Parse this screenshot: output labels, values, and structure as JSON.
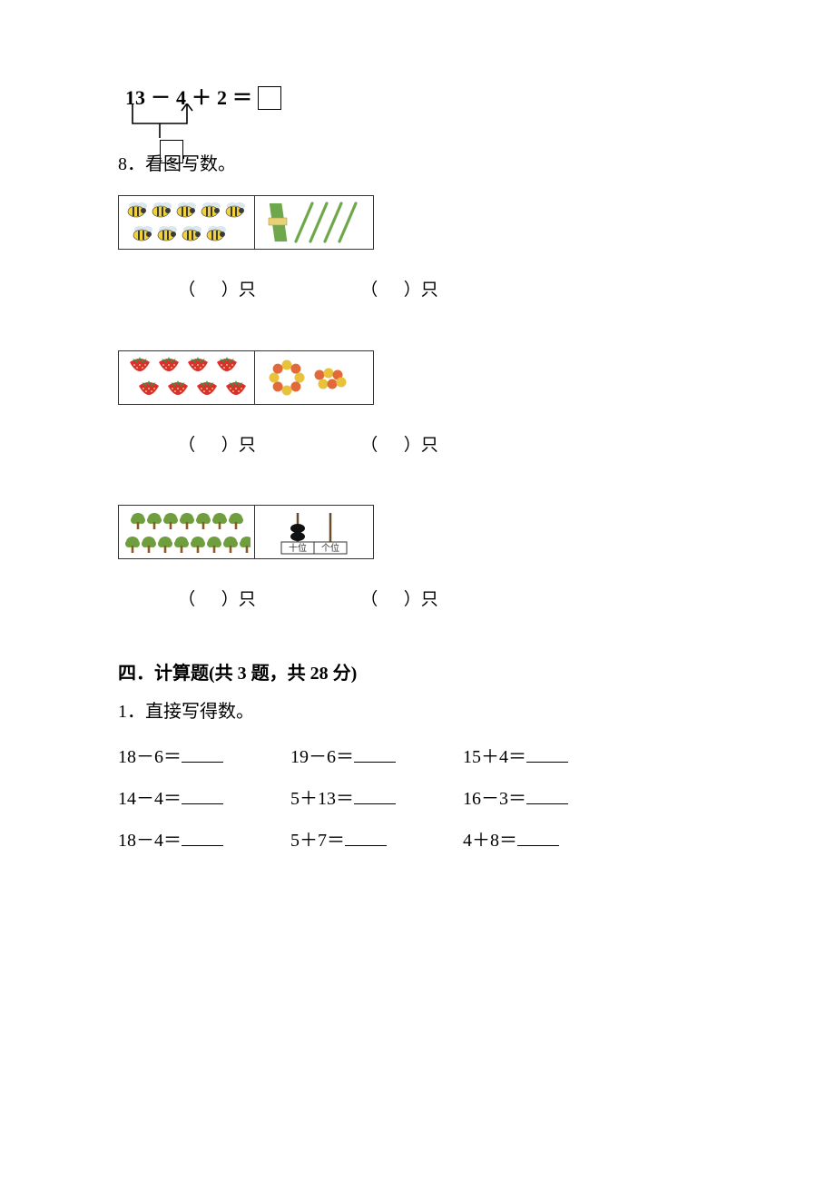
{
  "expr": {
    "n1": "13",
    "op1": "－",
    "n2": "4",
    "op2": "＋",
    "n3": "2",
    "eq": "＝"
  },
  "q8_prompt": "8．看图写数。",
  "count_label_open": "（",
  "count_label_close": "）只",
  "section4_head": "四．计算题(共 3 题，共 28 分)",
  "calc1_prompt": "1．直接写得数。",
  "calc1_items": [
    "18－6＝",
    "19－6＝",
    "15＋4＝",
    "14－4＝",
    "5＋13＝",
    "16－3＝",
    "18－4＝",
    "5＋7＝",
    "4＋8＝"
  ],
  "abacus_labels": {
    "tens": "十位",
    "ones": "个位"
  },
  "row1": {
    "bees_count": 9,
    "bundles": 1,
    "loose_sticks": 4
  },
  "row2": {
    "strawberries": 8,
    "candy_ring": 8,
    "candy_cluster": 6
  },
  "row3": {
    "trees": 15,
    "abacus_tens_beads": 2,
    "abacus_ones_beads": 0
  },
  "colors": {
    "bee_body_a": "#f1d23a",
    "bee_body_b": "#3a3a3a",
    "bee_wing": "#d6e4ea",
    "stick": "#6fa84c",
    "bundle_band": "#e6d27a",
    "strawberry": "#d7312e",
    "straw_leaf": "#3f8f3a",
    "straw_seed": "#ffe08a",
    "candy_a": "#e8c23a",
    "candy_b": "#e26a3a",
    "tree_foliage": "#6f9e3e",
    "tree_trunk": "#8a5a2b",
    "abacus_frame": "#6b4b2a",
    "abacus_bead": "#111"
  }
}
